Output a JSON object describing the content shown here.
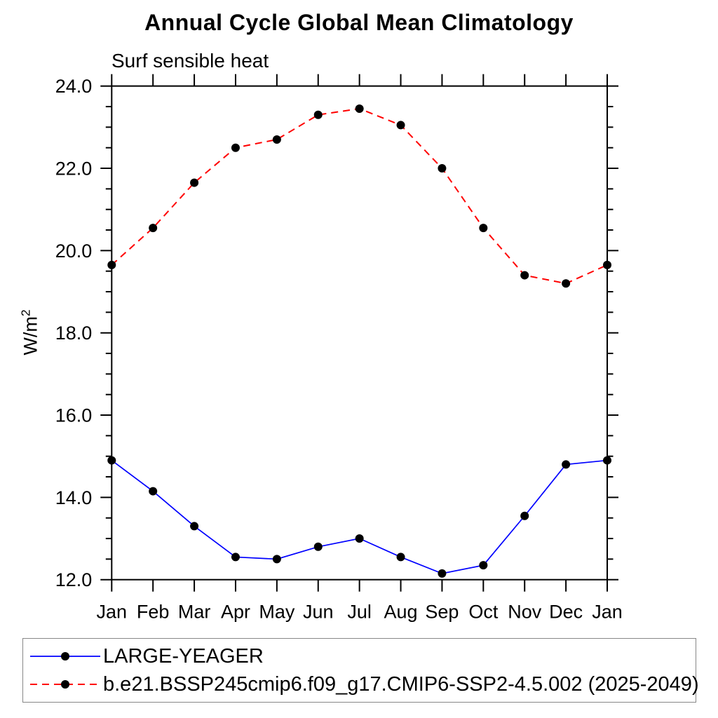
{
  "chart_data": {
    "type": "line",
    "title": "Annual Cycle Global Mean Climatology",
    "subtitle": "Surf sensible heat",
    "ylabel": {
      "base": "W/m",
      "sup": "2"
    },
    "categories": [
      "Jan",
      "Feb",
      "Mar",
      "Apr",
      "May",
      "Jun",
      "Jul",
      "Aug",
      "Sep",
      "Oct",
      "Nov",
      "Dec",
      "Jan"
    ],
    "ylim": [
      12.0,
      24.0
    ],
    "ytick_major": 2.0,
    "ytick_minor": 0.5,
    "ytick_label_format_decimals": 1,
    "grid": false,
    "legend_position": "bottom",
    "axis_color": "#000000",
    "marker_color": "#000000",
    "series": [
      {
        "name": "LARGE-YEAGER",
        "color": "#0000ff",
        "line_style": "solid",
        "marker": "circle",
        "values": [
          14.9,
          14.15,
          13.3,
          12.55,
          12.5,
          12.8,
          13.0,
          12.55,
          12.15,
          12.35,
          13.55,
          14.8,
          14.9
        ]
      },
      {
        "name": "b.e21.BSSP245cmip6.f09_g17.CMIP6-SSP2-4.5.002 (2025-2049)",
        "color": "#ff0000",
        "line_style": "dashed",
        "marker": "circle",
        "values": [
          19.65,
          20.55,
          21.65,
          22.5,
          22.7,
          23.3,
          23.45,
          23.05,
          22.0,
          20.55,
          19.4,
          19.2,
          19.65
        ]
      }
    ]
  }
}
